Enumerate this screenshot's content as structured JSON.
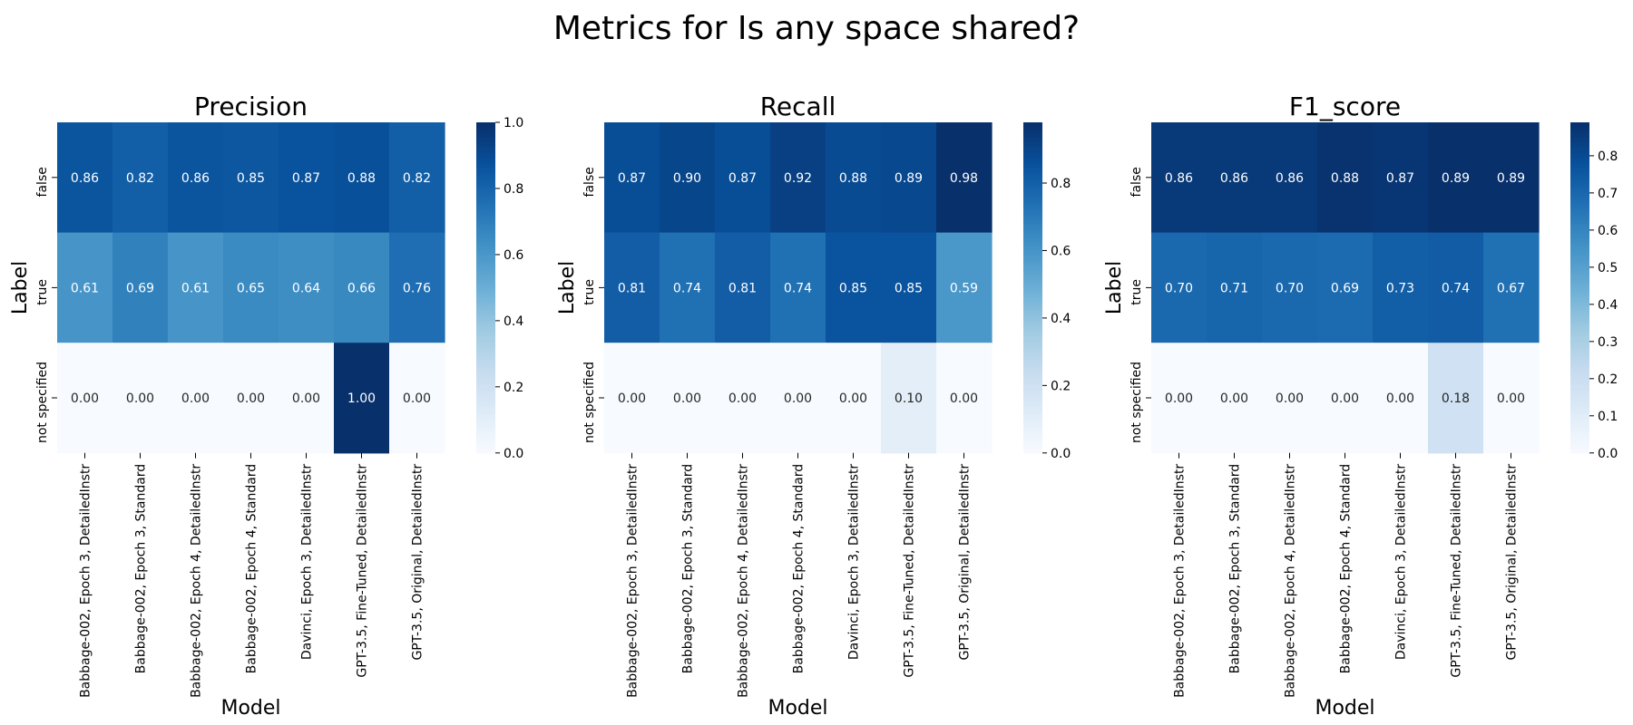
{
  "suptitle": "Metrics for Is any space shared?",
  "chart_data": [
    {
      "type": "heatmap",
      "title": "Precision",
      "xlabel": "Model",
      "ylabel": "Label",
      "x_categories": [
        "Babbage-002, Epoch 3, DetailedInstr",
        "Babbage-002, Epoch 3, Standard",
        "Babbage-002, Epoch 4, DetailedInstr",
        "Babbage-002, Epoch 4, Standard",
        "Davinci, Epoch 3, DetailedInstr",
        "GPT-3.5, Fine-Tuned, DetailedInstr",
        "GPT-3.5, Original, DetailedInstr"
      ],
      "y_categories": [
        "false",
        "true",
        "not specified"
      ],
      "values": [
        [
          0.86,
          0.82,
          0.86,
          0.85,
          0.87,
          0.88,
          0.82
        ],
        [
          0.61,
          0.69,
          0.61,
          0.65,
          0.64,
          0.66,
          0.76
        ],
        [
          0.0,
          0.0,
          0.0,
          0.0,
          0.0,
          1.0,
          0.0
        ]
      ],
      "value_labels": [
        [
          "0.86",
          "0.82",
          "0.86",
          "0.85",
          "0.87",
          "0.88",
          "0.82"
        ],
        [
          "0.61",
          "0.69",
          "0.61",
          "0.65",
          "0.64",
          "0.66",
          "0.76"
        ],
        [
          "0.00",
          "0.00",
          "0.00",
          "0.00",
          "0.00",
          "1.00",
          "0.00"
        ]
      ],
      "colorbar": {
        "vmin": 0.0,
        "vmax": 1.0,
        "ticks": [
          0.0,
          0.2,
          0.4,
          0.6,
          0.8,
          1.0
        ],
        "tick_labels": [
          "0.0",
          "0.2",
          "0.4",
          "0.6",
          "0.8",
          "1.0"
        ]
      },
      "colormap": "Blues"
    },
    {
      "type": "heatmap",
      "title": "Recall",
      "xlabel": "Model",
      "ylabel": "Label",
      "x_categories": [
        "Babbage-002, Epoch 3, DetailedInstr",
        "Babbage-002, Epoch 3, Standard",
        "Babbage-002, Epoch 4, DetailedInstr",
        "Babbage-002, Epoch 4, Standard",
        "Davinci, Epoch 3, DetailedInstr",
        "GPT-3.5, Fine-Tuned, DetailedInstr",
        "GPT-3.5, Original, DetailedInstr"
      ],
      "y_categories": [
        "false",
        "true",
        "not specified"
      ],
      "values": [
        [
          0.87,
          0.9,
          0.87,
          0.92,
          0.88,
          0.89,
          0.98
        ],
        [
          0.81,
          0.74,
          0.81,
          0.74,
          0.85,
          0.85,
          0.59
        ],
        [
          0.0,
          0.0,
          0.0,
          0.0,
          0.0,
          0.1,
          0.0
        ]
      ],
      "value_labels": [
        [
          "0.87",
          "0.90",
          "0.87",
          "0.92",
          "0.88",
          "0.89",
          "0.98"
        ],
        [
          "0.81",
          "0.74",
          "0.81",
          "0.74",
          "0.85",
          "0.85",
          "0.59"
        ],
        [
          "0.00",
          "0.00",
          "0.00",
          "0.00",
          "0.00",
          "0.10",
          "0.00"
        ]
      ],
      "colorbar": {
        "vmin": 0.0,
        "vmax": 0.98,
        "ticks": [
          0.0,
          0.2,
          0.4,
          0.6,
          0.8
        ],
        "tick_labels": [
          "0.0",
          "0.2",
          "0.4",
          "0.6",
          "0.8"
        ]
      },
      "colormap": "Blues"
    },
    {
      "type": "heatmap",
      "title": "F1_score",
      "xlabel": "Model",
      "ylabel": "Label",
      "x_categories": [
        "Babbage-002, Epoch 3, DetailedInstr",
        "Babbage-002, Epoch 3, Standard",
        "Babbage-002, Epoch 4, DetailedInstr",
        "Babbage-002, Epoch 4, Standard",
        "Davinci, Epoch 3, DetailedInstr",
        "GPT-3.5, Fine-Tuned, DetailedInstr",
        "GPT-3.5, Original, DetailedInstr"
      ],
      "y_categories": [
        "false",
        "true",
        "not specified"
      ],
      "values": [
        [
          0.86,
          0.86,
          0.86,
          0.88,
          0.87,
          0.89,
          0.89
        ],
        [
          0.7,
          0.71,
          0.7,
          0.69,
          0.73,
          0.74,
          0.67
        ],
        [
          0.0,
          0.0,
          0.0,
          0.0,
          0.0,
          0.18,
          0.0
        ]
      ],
      "value_labels": [
        [
          "0.86",
          "0.86",
          "0.86",
          "0.88",
          "0.87",
          "0.89",
          "0.89"
        ],
        [
          "0.70",
          "0.71",
          "0.70",
          "0.69",
          "0.73",
          "0.74",
          "0.67"
        ],
        [
          "0.00",
          "0.00",
          "0.00",
          "0.00",
          "0.00",
          "0.18",
          "0.00"
        ]
      ],
      "colorbar": {
        "vmin": 0.0,
        "vmax": 0.89,
        "ticks": [
          0.0,
          0.1,
          0.2,
          0.3,
          0.4,
          0.5,
          0.6,
          0.7,
          0.8
        ],
        "tick_labels": [
          "0.0",
          "0.1",
          "0.2",
          "0.3",
          "0.4",
          "0.5",
          "0.6",
          "0.7",
          "0.8"
        ]
      },
      "colormap": "Blues"
    }
  ]
}
